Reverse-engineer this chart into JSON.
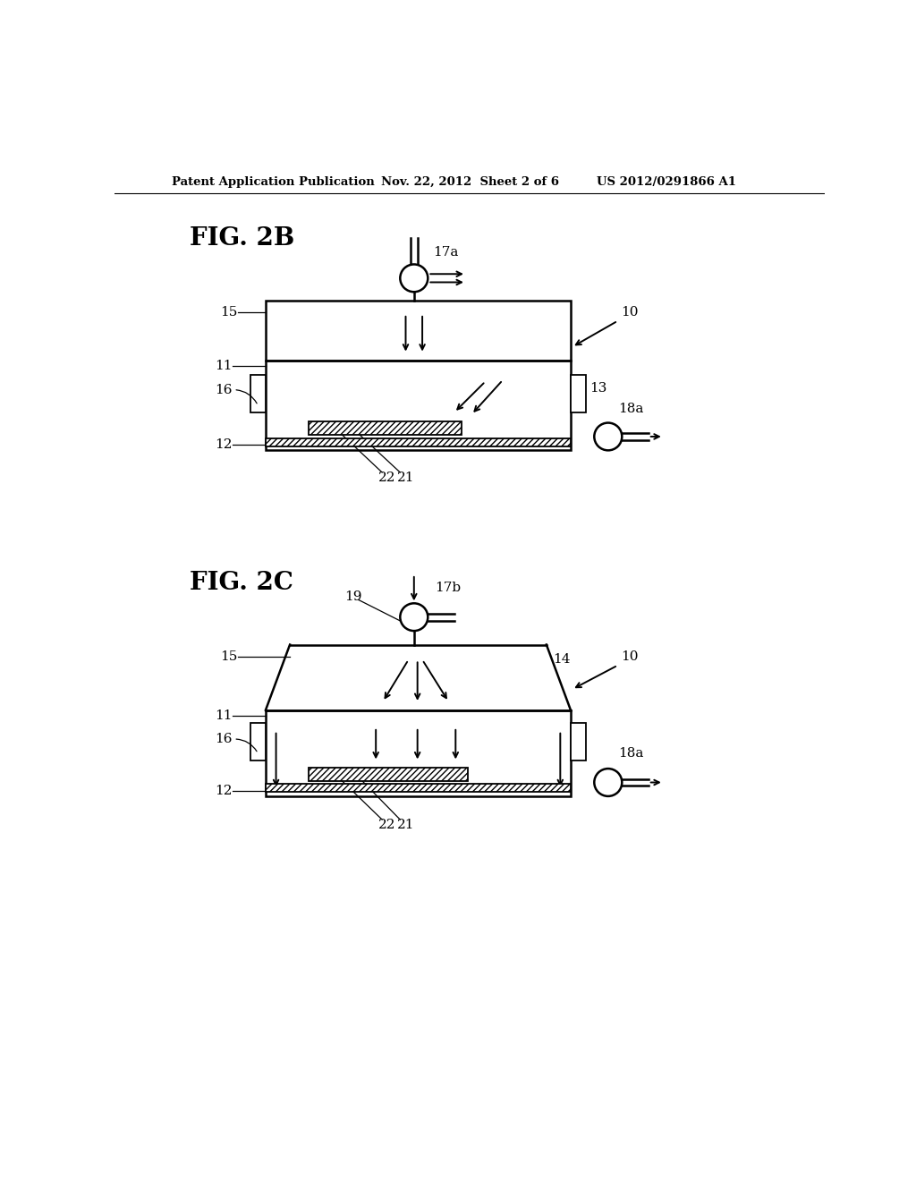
{
  "bg_color": "#ffffff",
  "header_text": "Patent Application Publication",
  "header_date": "Nov. 22, 2012  Sheet 2 of 6",
  "header_patent": "US 2012/0291866 A1",
  "fig2b_label": "FIG. 2B",
  "fig2c_label": "FIG. 2C"
}
